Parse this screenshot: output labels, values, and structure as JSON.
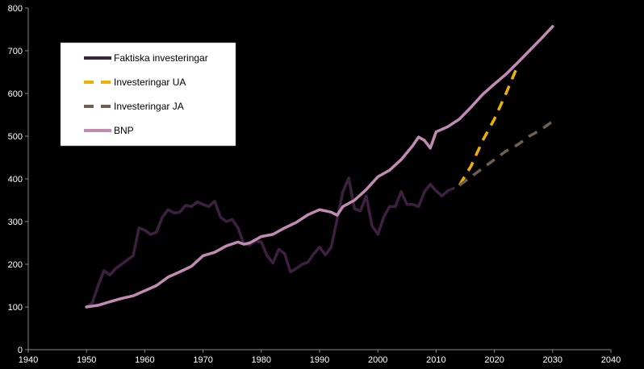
{
  "chart_data": {
    "type": "line",
    "xlim": [
      1940,
      2040
    ],
    "ylim": [
      0,
      800
    ],
    "x_ticks": [
      "1940",
      "1950",
      "1960",
      "1970",
      "1980",
      "1990",
      "2000",
      "2010",
      "2020",
      "2030",
      "2040"
    ],
    "y_ticks": [
      "0",
      "100",
      "200",
      "300",
      "400",
      "500",
      "600",
      "700",
      "800"
    ],
    "grid": false,
    "legend_position": "top-left",
    "series": [
      {
        "name": "Faktiska investeringar",
        "color": "#3d2040",
        "dash": "solid",
        "points": [
          [
            1950,
            100
          ],
          [
            1951,
            110
          ],
          [
            1952,
            150
          ],
          [
            1953,
            185
          ],
          [
            1954,
            175
          ],
          [
            1955,
            190
          ],
          [
            1956,
            200
          ],
          [
            1957,
            210
          ],
          [
            1958,
            220
          ],
          [
            1959,
            285
          ],
          [
            1960,
            280
          ],
          [
            1961,
            270
          ],
          [
            1962,
            275
          ],
          [
            1963,
            310
          ],
          [
            1964,
            328
          ],
          [
            1965,
            320
          ],
          [
            1966,
            322
          ],
          [
            1967,
            338
          ],
          [
            1968,
            335
          ],
          [
            1969,
            346
          ],
          [
            1970,
            340
          ],
          [
            1971,
            335
          ],
          [
            1972,
            348
          ],
          [
            1973,
            310
          ],
          [
            1974,
            300
          ],
          [
            1975,
            305
          ],
          [
            1976,
            285
          ],
          [
            1977,
            248
          ],
          [
            1978,
            245
          ],
          [
            1979,
            255
          ],
          [
            1980,
            252
          ],
          [
            1981,
            220
          ],
          [
            1982,
            203
          ],
          [
            1983,
            235
          ],
          [
            1984,
            225
          ],
          [
            1985,
            182
          ],
          [
            1986,
            190
          ],
          [
            1987,
            200
          ],
          [
            1988,
            205
          ],
          [
            1989,
            225
          ],
          [
            1990,
            240
          ],
          [
            1991,
            222
          ],
          [
            1992,
            240
          ],
          [
            1993,
            305
          ],
          [
            1994,
            370
          ],
          [
            1995,
            402
          ],
          [
            1996,
            330
          ],
          [
            1997,
            325
          ],
          [
            1998,
            360
          ],
          [
            1999,
            290
          ],
          [
            2000,
            270
          ],
          [
            2001,
            310
          ],
          [
            2002,
            335
          ],
          [
            2003,
            335
          ],
          [
            2004,
            370
          ],
          [
            2005,
            340
          ],
          [
            2006,
            340
          ],
          [
            2007,
            335
          ],
          [
            2008,
            370
          ],
          [
            2009,
            387
          ],
          [
            2010,
            372
          ],
          [
            2011,
            360
          ],
          [
            2012,
            372
          ],
          [
            2013,
            378
          ]
        ]
      },
      {
        "name": "Investeringar UA",
        "color": "#f0b000",
        "dash": "dashed",
        "points": [
          [
            2014,
            385
          ],
          [
            2016,
            430
          ],
          [
            2018,
            490
          ],
          [
            2020,
            540
          ],
          [
            2022,
            600
          ],
          [
            2024,
            665
          ]
        ]
      },
      {
        "name": "Investeringar JA",
        "color": "#6e6050",
        "dash": "dashed",
        "points": [
          [
            2014,
            385
          ],
          [
            2016,
            405
          ],
          [
            2018,
            425
          ],
          [
            2020,
            445
          ],
          [
            2022,
            465
          ],
          [
            2024,
            480
          ],
          [
            2026,
            500
          ],
          [
            2028,
            515
          ],
          [
            2030,
            535
          ]
        ]
      },
      {
        "name": "BNP",
        "color": "#c38ab4",
        "dash": "solid",
        "points": [
          [
            1950,
            100
          ],
          [
            1952,
            104
          ],
          [
            1954,
            112
          ],
          [
            1956,
            120
          ],
          [
            1958,
            126
          ],
          [
            1960,
            138
          ],
          [
            1962,
            150
          ],
          [
            1964,
            170
          ],
          [
            1966,
            182
          ],
          [
            1968,
            195
          ],
          [
            1970,
            220
          ],
          [
            1972,
            228
          ],
          [
            1974,
            243
          ],
          [
            1976,
            252
          ],
          [
            1977,
            247
          ],
          [
            1978,
            250
          ],
          [
            1980,
            265
          ],
          [
            1982,
            270
          ],
          [
            1984,
            285
          ],
          [
            1986,
            298
          ],
          [
            1988,
            316
          ],
          [
            1990,
            328
          ],
          [
            1992,
            322
          ],
          [
            1993,
            315
          ],
          [
            1994,
            335
          ],
          [
            1996,
            350
          ],
          [
            1998,
            375
          ],
          [
            2000,
            405
          ],
          [
            2002,
            420
          ],
          [
            2004,
            445
          ],
          [
            2006,
            478
          ],
          [
            2007,
            498
          ],
          [
            2008,
            490
          ],
          [
            2009,
            472
          ],
          [
            2010,
            510
          ],
          [
            2012,
            522
          ],
          [
            2014,
            540
          ],
          [
            2016,
            568
          ],
          [
            2018,
            598
          ],
          [
            2020,
            622
          ],
          [
            2022,
            645
          ],
          [
            2024,
            672
          ],
          [
            2026,
            700
          ],
          [
            2028,
            728
          ],
          [
            2030,
            757
          ]
        ]
      }
    ]
  }
}
